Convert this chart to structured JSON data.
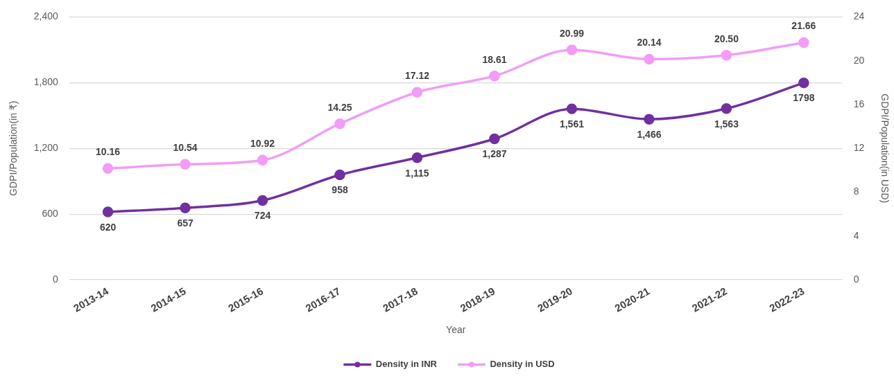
{
  "chart_data": {
    "type": "line",
    "xlabel": "Year",
    "ylabel": "GDPI/Population(in ₹)",
    "y2label": "GDPI/Population(in USD)",
    "categories": [
      "2013-14",
      "2014-15",
      "2015-16",
      "2016-17",
      "2017-18",
      "2018-19",
      "2019-20",
      "2020-21",
      "2021-22",
      "2022-23"
    ],
    "series": [
      {
        "name": "Density in INR",
        "color": "#7030a0",
        "values": [
          620,
          657,
          724,
          958,
          1115,
          1287,
          1561,
          1466,
          1563,
          1798
        ],
        "value_labels": [
          "620",
          "657",
          "724",
          "958",
          "1,115",
          "1,287",
          "1,561",
          "1,466",
          "1,563",
          "1798"
        ]
      },
      {
        "name": "Density in USD",
        "color": "#f29cf7",
        "axis": "y2",
        "values": [
          10.16,
          10.54,
          10.92,
          14.25,
          17.12,
          18.61,
          20.99,
          20.14,
          20.5,
          21.66
        ],
        "value_labels": [
          "10.16",
          "10.54",
          "10.92",
          "14.25",
          "17.12",
          "18.61",
          "20.99",
          "20.14",
          "20.50",
          "21.66"
        ]
      }
    ],
    "ylim": [
      0,
      2400
    ],
    "yticks": [
      0,
      600,
      {
        "value": 1200,
        "label": "1,200"
      },
      {
        "value": 1800,
        "label": "1,800"
      },
      {
        "value": 2400,
        "label": "2,400"
      }
    ],
    "y2lim": [
      0,
      24
    ],
    "y2ticks": [
      0,
      4,
      8,
      12,
      16,
      20,
      24
    ],
    "grid": "y",
    "legend": "bottom",
    "marker": "circle",
    "line_style": "solid"
  }
}
